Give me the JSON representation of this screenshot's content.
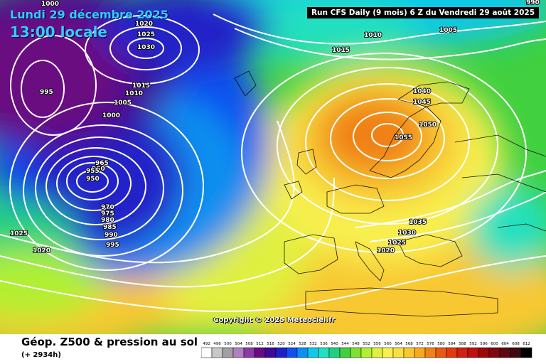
{
  "header": {
    "date": "Lundi 29 décembre 2025",
    "time": "13:00 locale",
    "run_info": "Run CFS Daily (9 mois) 6 Z du Vendredi 29 août 2025"
  },
  "map": {
    "copyright": "Copyright © 2025 Meteociel.fr",
    "pressure_labels": [
      "990",
      "1000",
      "1005",
      "1020",
      "1025",
      "1030",
      "995",
      "1015",
      "1010",
      "1005",
      "1000",
      "965",
      "960",
      "955",
      "950",
      "970",
      "975",
      "980",
      "985",
      "990",
      "995",
      "1025",
      "1020",
      "1010",
      "1015",
      "1040",
      "1045",
      "1050",
      "1055",
      "1035",
      "1030",
      "1025",
      "1020"
    ],
    "colors": {
      "low": "#6a0a80",
      "mid": "#3ad03a",
      "high": "#f07a10",
      "isobar": "#ffffff"
    }
  },
  "footer": {
    "title": "Géop. Z500 & pression au sol",
    "hours": "(+ 2934h)"
  },
  "legend": {
    "values": [
      "492",
      "496",
      "500",
      "504",
      "508",
      "512",
      "516",
      "520",
      "524",
      "528",
      "532",
      "536",
      "540",
      "544",
      "548",
      "552",
      "556",
      "560",
      "564",
      "568",
      "572",
      "576",
      "580",
      "584",
      "588",
      "592",
      "596",
      "600",
      "604",
      "608",
      "612"
    ],
    "colors": [
      "#ffffff",
      "#c8c8c8",
      "#a0a0a0",
      "#b080c0",
      "#8a3aa8",
      "#6a0a80",
      "#3a0a98",
      "#2020c8",
      "#1050f0",
      "#0a90f0",
      "#10c8e8",
      "#20e0c0",
      "#20d080",
      "#40d040",
      "#80e030",
      "#b0f030",
      "#e0f040",
      "#f8f050",
      "#f8e040",
      "#f8c830",
      "#f8a820",
      "#f08018",
      "#e85a10",
      "#e03a10",
      "#d02010",
      "#c01010",
      "#a00808",
      "#800810",
      "#600810",
      "#400810",
      "#000000"
    ]
  }
}
